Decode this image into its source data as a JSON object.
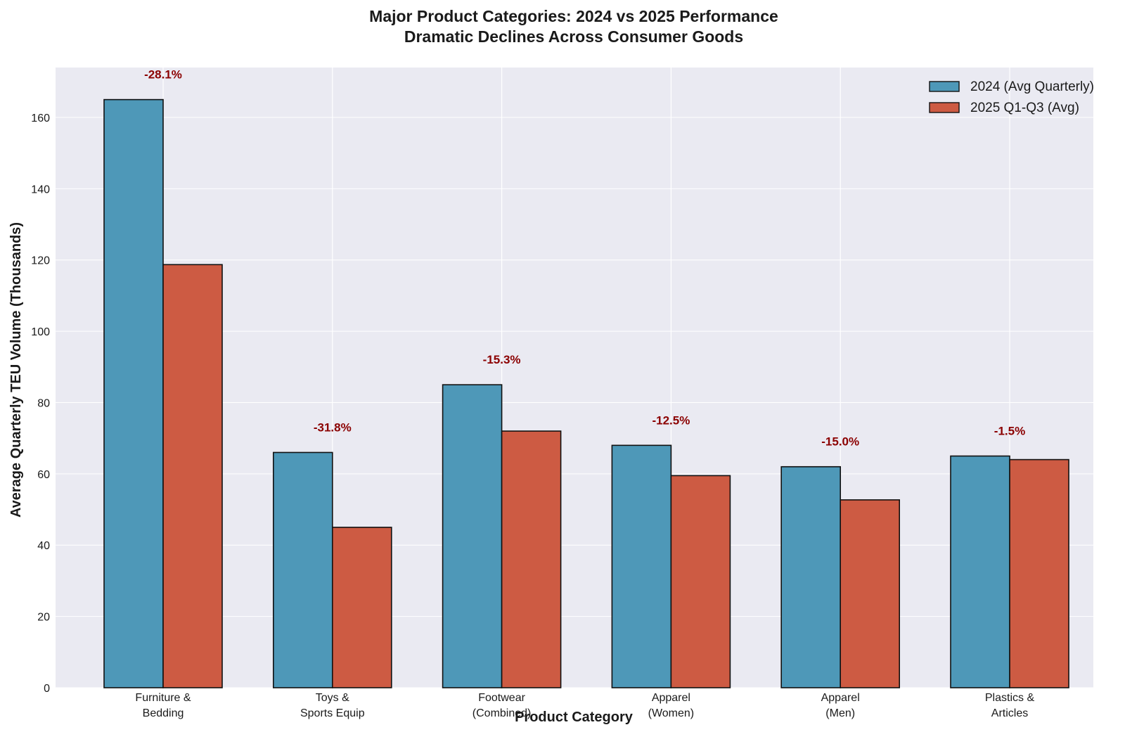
{
  "chart_data": {
    "type": "bar",
    "title_line1": "Major Product Categories: 2024 vs 2025 Performance",
    "title_line2": "Dramatic Declines Across Consumer Goods",
    "xlabel": "Product Category",
    "ylabel": "Average Quarterly TEU Volume (Thousands)",
    "ylim": [
      0,
      174
    ],
    "yticks": [
      0,
      20,
      40,
      60,
      80,
      100,
      120,
      140,
      160
    ],
    "categories": [
      [
        "Furniture &",
        "Bedding"
      ],
      [
        "Toys &",
        "Sports Equip"
      ],
      [
        "Footwear",
        "(Combined)"
      ],
      [
        "Apparel",
        "(Women)"
      ],
      [
        "Apparel",
        "(Men)"
      ],
      [
        "Plastics &",
        "Articles"
      ]
    ],
    "series": [
      {
        "name": "2024 (Avg Quarterly)",
        "color": "#4e98b8",
        "values": [
          165,
          66,
          85,
          68,
          62,
          65
        ]
      },
      {
        "name": "2025 Q1-Q3 (Avg)",
        "color": "#cd5b43",
        "values": [
          118.7,
          45,
          72,
          59.5,
          52.7,
          64
        ]
      }
    ],
    "annotations": [
      "-28.1%",
      "-31.8%",
      "-15.3%",
      "-12.5%",
      "-15.0%",
      "-1.5%"
    ],
    "annotation_color": "#8b0000",
    "grid": true,
    "legend_position": "top-right"
  }
}
